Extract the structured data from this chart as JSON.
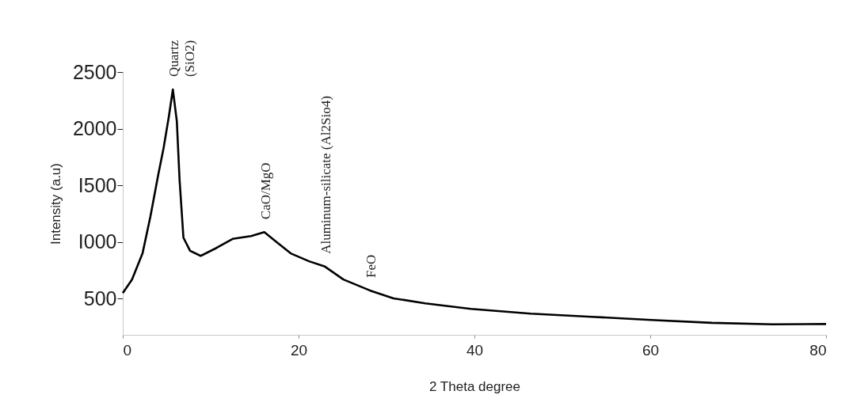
{
  "chart_data": {
    "type": "line",
    "xlabel": "2 Theta degree",
    "ylabel": "Intensity (a.u)",
    "xlim": [
      0,
      80
    ],
    "xticks": [
      0,
      20,
      40,
      60,
      80
    ],
    "ylim": [
      180,
      2500
    ],
    "yticks": [
      500,
      {
        "value": 1000,
        "label": "I000"
      },
      {
        "value": 1500,
        "label": "I500"
      },
      2000,
      2500
    ],
    "grid": false,
    "series": [
      {
        "color": "#000000",
        "x": [
          0,
          1.05,
          2.25,
          3.15,
          4.05,
          4.65,
          5.25,
          5.7,
          6.15,
          6.46,
          6.9,
          7.66,
          8.86,
          10.66,
          12.5,
          14.6,
          16.1,
          17.6,
          19.1,
          21.2,
          23,
          25.1,
          28.1,
          30.8,
          34.4,
          39.6,
          46.4,
          53.3,
          60.1,
          67,
          73.9,
          80
        ],
        "values": [
          549,
          668,
          899,
          1227,
          1598,
          1831,
          2110,
          2346,
          2066,
          1551,
          1038,
          922,
          877,
          947,
          1027,
          1052,
          1087,
          992,
          899,
          829,
          782,
          668,
          572,
          502,
          458,
          409,
          367,
          339,
          311,
          286,
          273,
          275
        ]
      }
    ],
    "annotations": [
      {
        "text": "Quartz\n(SiO2)",
        "x": 5.7,
        "y": 2346
      },
      {
        "text": "CaO/MgO",
        "x": 16.1,
        "y": 1087
      },
      {
        "text": "Aluminum-silicate  (Al2Sio4)",
        "x": 23,
        "y": 782
      },
      {
        "text": "FeO",
        "x": 28.1,
        "y": 572
      }
    ]
  }
}
